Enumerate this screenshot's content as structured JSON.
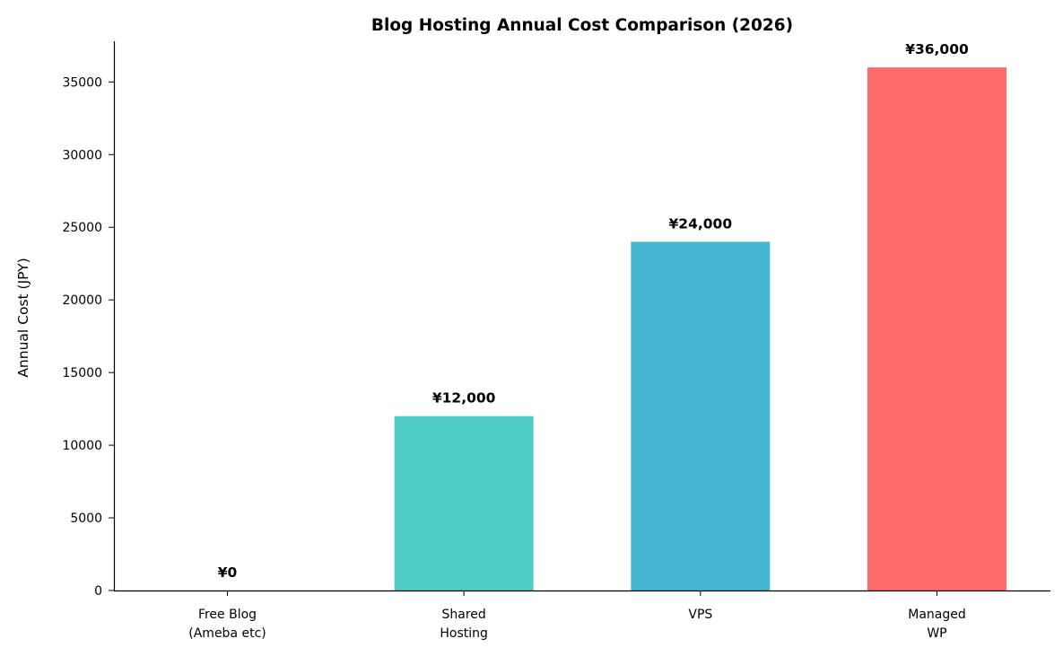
{
  "chart_data": {
    "type": "bar",
    "title": "Blog Hosting Annual Cost Comparison (2026)",
    "xlabel": "",
    "ylabel": "Annual Cost (JPY)",
    "ylim": [
      0,
      37800
    ],
    "yticks": [
      0,
      5000,
      10000,
      15000,
      20000,
      25000,
      30000,
      35000
    ],
    "categories": [
      [
        "Free Blog",
        "(Ameba etc)"
      ],
      [
        "Shared",
        "Hosting"
      ],
      [
        "VPS"
      ],
      [
        "Managed",
        "WP"
      ]
    ],
    "values": [
      0,
      12000,
      24000,
      36000
    ],
    "value_labels": [
      "¥0",
      "¥12,000",
      "¥24,000",
      "¥36,000"
    ],
    "colors": [
      "#95E1D3",
      "#4ECDC4",
      "#45B7D1",
      "#FF6B6B"
    ],
    "grid": false,
    "legend": "none"
  }
}
